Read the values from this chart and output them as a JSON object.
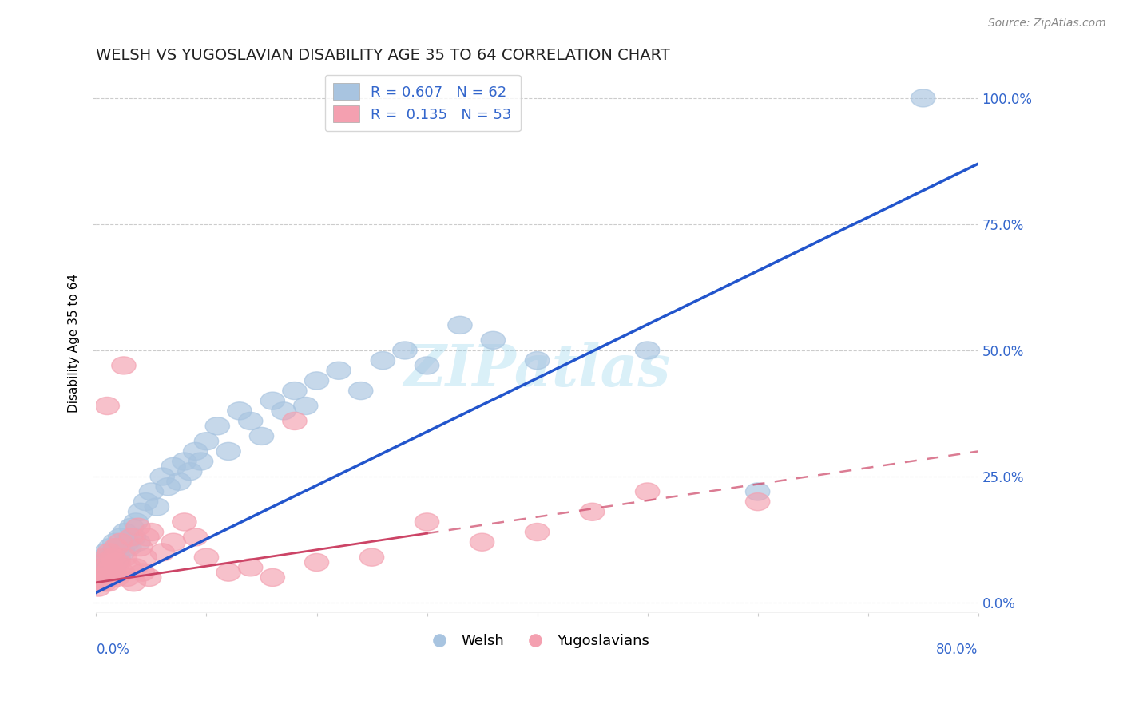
{
  "title": "WELSH VS YUGOSLAVIAN DISABILITY AGE 35 TO 64 CORRELATION CHART",
  "source": "Source: ZipAtlas.com",
  "ylabel": "Disability Age 35 to 64",
  "ytick_labels": [
    "0.0%",
    "25.0%",
    "50.0%",
    "75.0%",
    "100.0%"
  ],
  "ytick_values": [
    0.0,
    0.25,
    0.5,
    0.75,
    1.0
  ],
  "xlim": [
    0.0,
    0.8
  ],
  "ylim": [
    -0.02,
    1.05
  ],
  "welsh_R": 0.607,
  "welsh_N": 62,
  "yugo_R": 0.135,
  "yugo_N": 53,
  "welsh_color": "#a8c4e0",
  "yugo_color": "#f4a0b0",
  "trend_welsh_color": "#2255cc",
  "trend_yugo_color": "#cc4466",
  "legend_label_welsh": "Welsh",
  "legend_label_yugo": "Yugoslavians",
  "watermark": "ZIPatlas",
  "welsh_trend_x0": 0.0,
  "welsh_trend_y0": 0.02,
  "welsh_trend_x1": 0.8,
  "welsh_trend_y1": 0.87,
  "yugo_trend_x0": 0.0,
  "yugo_trend_y0": 0.04,
  "yugo_trend_x1": 0.8,
  "yugo_trend_y1": 0.3,
  "yugo_trend_dashed_x0": 0.3,
  "yugo_trend_dashed_y0": 0.155,
  "welsh_points": [
    [
      0.002,
      0.04
    ],
    [
      0.003,
      0.06
    ],
    [
      0.004,
      0.05
    ],
    [
      0.005,
      0.08
    ],
    [
      0.006,
      0.07
    ],
    [
      0.007,
      0.09
    ],
    [
      0.008,
      0.06
    ],
    [
      0.009,
      0.1
    ],
    [
      0.01,
      0.07
    ],
    [
      0.011,
      0.05
    ],
    [
      0.012,
      0.09
    ],
    [
      0.013,
      0.11
    ],
    [
      0.014,
      0.08
    ],
    [
      0.015,
      0.1
    ],
    [
      0.016,
      0.06
    ],
    [
      0.017,
      0.12
    ],
    [
      0.018,
      0.08
    ],
    [
      0.019,
      0.11
    ],
    [
      0.02,
      0.09
    ],
    [
      0.022,
      0.13
    ],
    [
      0.024,
      0.1
    ],
    [
      0.026,
      0.14
    ],
    [
      0.028,
      0.12
    ],
    [
      0.03,
      0.11
    ],
    [
      0.032,
      0.15
    ],
    [
      0.034,
      0.13
    ],
    [
      0.036,
      0.16
    ],
    [
      0.038,
      0.12
    ],
    [
      0.04,
      0.18
    ],
    [
      0.045,
      0.2
    ],
    [
      0.05,
      0.22
    ],
    [
      0.055,
      0.19
    ],
    [
      0.06,
      0.25
    ],
    [
      0.065,
      0.23
    ],
    [
      0.07,
      0.27
    ],
    [
      0.075,
      0.24
    ],
    [
      0.08,
      0.28
    ],
    [
      0.085,
      0.26
    ],
    [
      0.09,
      0.3
    ],
    [
      0.095,
      0.28
    ],
    [
      0.1,
      0.32
    ],
    [
      0.11,
      0.35
    ],
    [
      0.12,
      0.3
    ],
    [
      0.13,
      0.38
    ],
    [
      0.14,
      0.36
    ],
    [
      0.15,
      0.33
    ],
    [
      0.16,
      0.4
    ],
    [
      0.17,
      0.38
    ],
    [
      0.18,
      0.42
    ],
    [
      0.19,
      0.39
    ],
    [
      0.2,
      0.44
    ],
    [
      0.22,
      0.46
    ],
    [
      0.24,
      0.42
    ],
    [
      0.26,
      0.48
    ],
    [
      0.28,
      0.5
    ],
    [
      0.3,
      0.47
    ],
    [
      0.33,
      0.55
    ],
    [
      0.36,
      0.52
    ],
    [
      0.4,
      0.48
    ],
    [
      0.5,
      0.5
    ],
    [
      0.6,
      0.22
    ],
    [
      0.75,
      1.0
    ]
  ],
  "yugo_points": [
    [
      0.002,
      0.03
    ],
    [
      0.003,
      0.05
    ],
    [
      0.004,
      0.04
    ],
    [
      0.005,
      0.07
    ],
    [
      0.006,
      0.05
    ],
    [
      0.007,
      0.08
    ],
    [
      0.008,
      0.04
    ],
    [
      0.009,
      0.09
    ],
    [
      0.01,
      0.06
    ],
    [
      0.011,
      0.04
    ],
    [
      0.012,
      0.1
    ],
    [
      0.013,
      0.07
    ],
    [
      0.014,
      0.05
    ],
    [
      0.015,
      0.09
    ],
    [
      0.016,
      0.06
    ],
    [
      0.017,
      0.08
    ],
    [
      0.018,
      0.11
    ],
    [
      0.019,
      0.05
    ],
    [
      0.02,
      0.08
    ],
    [
      0.022,
      0.12
    ],
    [
      0.024,
      0.06
    ],
    [
      0.026,
      0.09
    ],
    [
      0.028,
      0.05
    ],
    [
      0.03,
      0.07
    ],
    [
      0.032,
      0.13
    ],
    [
      0.034,
      0.04
    ],
    [
      0.036,
      0.07
    ],
    [
      0.038,
      0.15
    ],
    [
      0.04,
      0.11
    ],
    [
      0.042,
      0.06
    ],
    [
      0.044,
      0.09
    ],
    [
      0.046,
      0.13
    ],
    [
      0.048,
      0.05
    ],
    [
      0.05,
      0.14
    ],
    [
      0.01,
      0.39
    ],
    [
      0.025,
      0.47
    ],
    [
      0.06,
      0.1
    ],
    [
      0.07,
      0.12
    ],
    [
      0.08,
      0.16
    ],
    [
      0.09,
      0.13
    ],
    [
      0.1,
      0.09
    ],
    [
      0.12,
      0.06
    ],
    [
      0.14,
      0.07
    ],
    [
      0.16,
      0.05
    ],
    [
      0.18,
      0.36
    ],
    [
      0.2,
      0.08
    ],
    [
      0.25,
      0.09
    ],
    [
      0.3,
      0.16
    ],
    [
      0.35,
      0.12
    ],
    [
      0.4,
      0.14
    ],
    [
      0.45,
      0.18
    ],
    [
      0.5,
      0.22
    ],
    [
      0.6,
      0.2
    ]
  ]
}
